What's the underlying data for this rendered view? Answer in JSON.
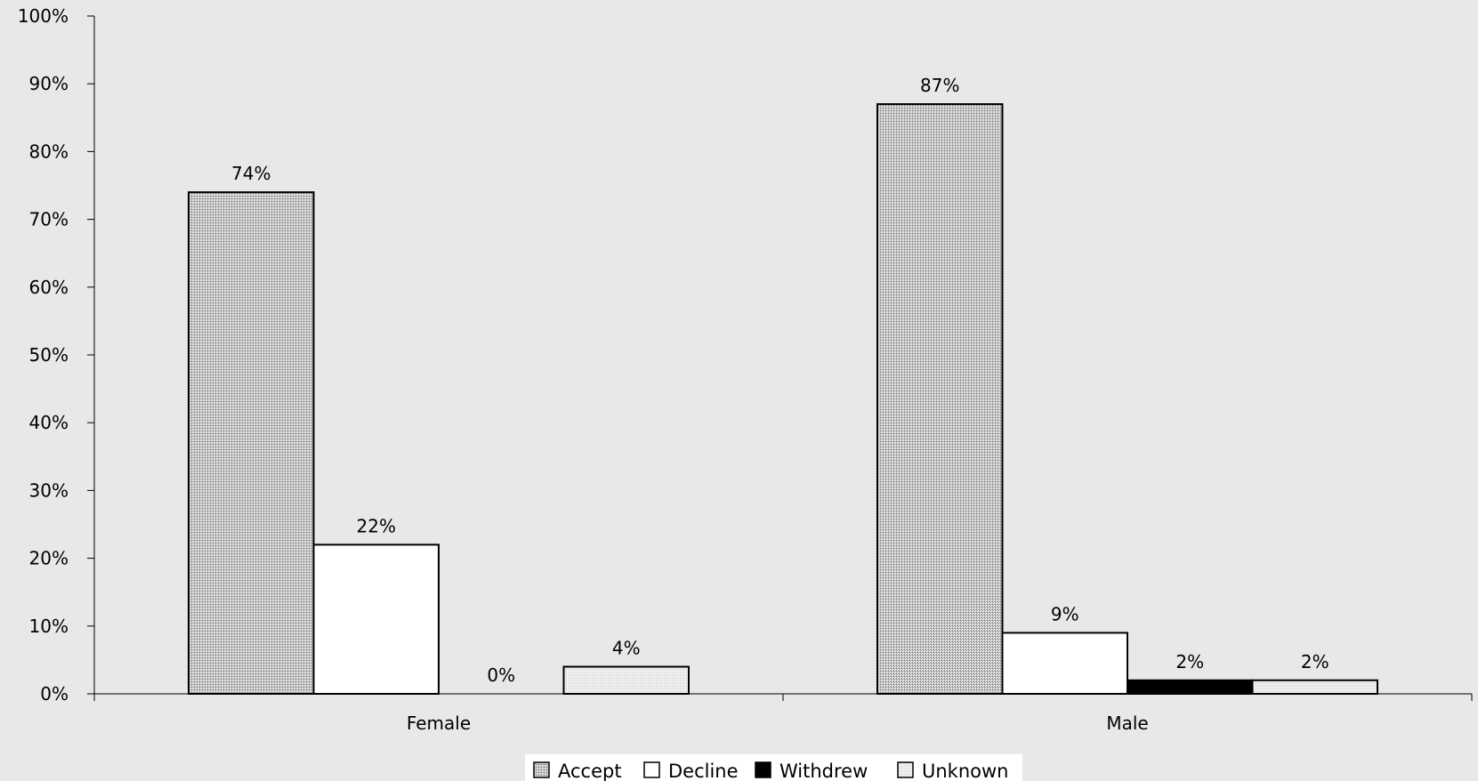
{
  "chart_data": {
    "type": "bar",
    "categories": [
      "Female",
      "Male"
    ],
    "series": [
      {
        "name": "Accept",
        "values": [
          74,
          87
        ],
        "labels": [
          "74%",
          "87%"
        ],
        "fill": "pattern-accept"
      },
      {
        "name": "Decline",
        "values": [
          22,
          9
        ],
        "labels": [
          "22%",
          "9%"
        ],
        "fill": "#ffffff"
      },
      {
        "name": "Withdrew",
        "values": [
          0,
          2
        ],
        "labels": [
          "0%",
          "2%"
        ],
        "fill": "#000000"
      },
      {
        "name": "Unknown",
        "values": [
          4,
          2
        ],
        "labels": [
          "4%",
          "2%"
        ],
        "fill": "pattern-unknown"
      }
    ],
    "ylim": [
      0,
      100
    ],
    "yticks": [
      0,
      10,
      20,
      30,
      40,
      50,
      60,
      70,
      80,
      90,
      100
    ],
    "ytick_labels": [
      "0%",
      "10%",
      "20%",
      "30%",
      "40%",
      "50%",
      "60%",
      "70%",
      "80%",
      "90%",
      "100%"
    ],
    "grid": false,
    "legend": "bottom",
    "title": "",
    "xlabel": "",
    "ylabel": ""
  },
  "colors": {
    "background": "#e8e8e8",
    "axis": "#000000",
    "legend_background": "#ffffff"
  }
}
